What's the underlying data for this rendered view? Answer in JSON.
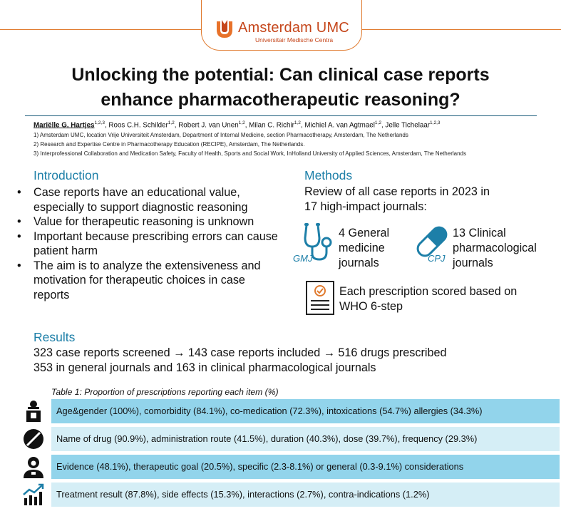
{
  "header": {
    "logo_name": "Amsterdam UMC",
    "logo_subtitle": "Universitair Medische Centra",
    "title_line1": "Unlocking the potential: Can clinical case reports",
    "title_line2": "enhance pharmacotherapeutic reasoning?"
  },
  "authors": {
    "first_author": "Mariëlle G. Hartjes",
    "first_author_sup": "1,2,3",
    "others": [
      {
        "name": "Roos C.H. Schilder",
        "sup": "1,2"
      },
      {
        "name": "Robert J. van Unen",
        "sup": "1,2"
      },
      {
        "name": "Milan C. Richir",
        "sup": "1,2"
      },
      {
        "name": "Michiel A. van Agtmael",
        "sup": "1,2"
      },
      {
        "name": "Jelle Tichelaar",
        "sup": "1,2,3"
      }
    ],
    "affiliations": [
      "1) Amsterdam UMC, location Vrije Universiteit Amsterdam, Department of Internal Medicine, section Pharmacotherapy, Amsterdam, The Netherlands",
      "2) Research and Expertise Centre in Pharmacotherapy Education (RECIPE), Amsterdam, The Netherlands.",
      "3) Interprofessional Collaboration and Medication Safety, Faculty of Health, Sports and Social Work, InHolland University of Applied Sciences, Amsterdam, The Netherlands"
    ]
  },
  "introduction": {
    "title": "Introduction",
    "bullets": [
      "Case reports have an educational value, especially to support diagnostic reasoning",
      "Value for therapeutic reasoning is unknown",
      "Important because prescribing errors can cause patient harm",
      "The aim is to analyze the extensiveness and motivation for therapeutic choices in case reports"
    ]
  },
  "methods": {
    "title": "Methods",
    "line1": "Review of all case reports in 2023 in",
    "line2": "17 high-impact journals:",
    "gmj_label": "GMJ",
    "gmj_text_1": "4 General",
    "gmj_text_2": "medicine",
    "gmj_text_3": "journals",
    "cpj_label": "CPJ",
    "cpj_text_1": "13 Clinical",
    "cpj_text_2": "pharmacological",
    "cpj_text_3": "journals",
    "score_text_1": "Each prescription scored based on",
    "score_text_2": "WHO 6-step"
  },
  "results": {
    "title": "Results",
    "line1": "323 case reports screened → 143 case reports included → 516 drugs prescribed",
    "line2": "353 in general journals and 163 in clinical pharmacological journals"
  },
  "table": {
    "caption": "Table 1: Proportion of prescriptions reporting each item (%)",
    "rows": [
      {
        "icon": "patient-icon",
        "text": "Age&gender (100%), comorbidity (84.1%), co-medication (72.3%), intoxications (54.7%) allergies (34.3%)"
      },
      {
        "icon": "pill-icon",
        "text": "Name of drug (90.9%), administration route (41.5%), duration (40.3%), dose (39.7%), frequency (29.3%)"
      },
      {
        "icon": "doctor-icon",
        "text": "Evidence (48.1%), therapeutic goal (20.5%), specific (2.3-8.1%) or general (0.3-9.1%) considerations"
      },
      {
        "icon": "chart-growth-icon",
        "text": "Treatment result (87.8%), side effects (15.3%), interactions (2.7%), contra-indications (1.2%)"
      }
    ]
  },
  "colors": {
    "accent_blue": "#1d7fa8",
    "brand_orange": "#c5461b",
    "row_dark": "#92d4eb",
    "row_light": "#d5eef6"
  }
}
